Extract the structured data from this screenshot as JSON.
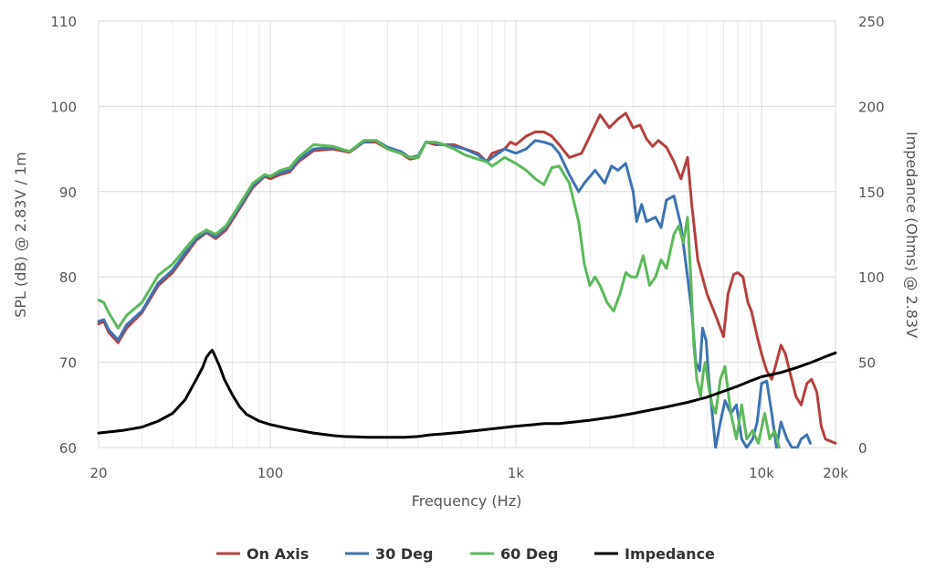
{
  "chart_data": {
    "type": "line",
    "xlabel": "Frequency (Hz)",
    "ylabel_left": "SPL (dB) @ 2.83V / 1m",
    "ylabel_right": "Impedance (Ohms) @ 2.83V",
    "x_scale": "log",
    "xlim": [
      20,
      20000
    ],
    "ylim_left": [
      60,
      110
    ],
    "ylim_right": [
      0,
      250
    ],
    "x_ticks": [
      {
        "value": 20,
        "label": "20"
      },
      {
        "value": 100,
        "label": "100"
      },
      {
        "value": 1000,
        "label": "1k"
      },
      {
        "value": 10000,
        "label": "10k"
      },
      {
        "value": 20000,
        "label": "20k"
      }
    ],
    "y_ticks_left": [
      "60",
      "70",
      "80",
      "90",
      "100",
      "110"
    ],
    "y_ticks_right": [
      "0",
      "50",
      "100",
      "150",
      "200",
      "250"
    ],
    "grid": true,
    "legend_position": "bottom",
    "series": [
      {
        "name": "On Axis",
        "axis": "left",
        "color": "#b5403f",
        "points": [
          [
            20,
            74.5
          ],
          [
            21,
            74.8
          ],
          [
            22,
            73.5
          ],
          [
            24,
            72.3
          ],
          [
            26,
            74
          ],
          [
            30,
            75.8
          ],
          [
            35,
            79
          ],
          [
            40,
            80.5
          ],
          [
            45,
            82.5
          ],
          [
            50,
            84.3
          ],
          [
            55,
            85.2
          ],
          [
            60,
            84.5
          ],
          [
            66,
            85.5
          ],
          [
            75,
            88
          ],
          [
            85,
            90.5
          ],
          [
            95,
            91.8
          ],
          [
            100,
            91.5
          ],
          [
            110,
            92
          ],
          [
            120,
            92.3
          ],
          [
            130,
            93.5
          ],
          [
            150,
            94.8
          ],
          [
            180,
            95
          ],
          [
            210,
            94.6
          ],
          [
            240,
            95.8
          ],
          [
            270,
            95.8
          ],
          [
            300,
            95
          ],
          [
            340,
            94.5
          ],
          [
            370,
            93.8
          ],
          [
            400,
            94
          ],
          [
            430,
            95.8
          ],
          [
            470,
            95.5
          ],
          [
            500,
            95.5
          ],
          [
            560,
            95.5
          ],
          [
            620,
            95
          ],
          [
            700,
            94.5
          ],
          [
            760,
            93.5
          ],
          [
            800,
            94.5
          ],
          [
            900,
            95
          ],
          [
            950,
            95.8
          ],
          [
            1000,
            95.5
          ],
          [
            1100,
            96.5
          ],
          [
            1200,
            97
          ],
          [
            1300,
            97
          ],
          [
            1400,
            96.5
          ],
          [
            1500,
            95.5
          ],
          [
            1650,
            94
          ],
          [
            1850,
            94.5
          ],
          [
            2000,
            96.5
          ],
          [
            2200,
            99
          ],
          [
            2400,
            97.5
          ],
          [
            2600,
            98.5
          ],
          [
            2800,
            99.2
          ],
          [
            3000,
            97.5
          ],
          [
            3200,
            97.8
          ],
          [
            3400,
            96.2
          ],
          [
            3600,
            95.3
          ],
          [
            3800,
            96
          ],
          [
            4100,
            95.2
          ],
          [
            4400,
            93.5
          ],
          [
            4700,
            91.5
          ],
          [
            5000,
            94
          ],
          [
            5200,
            88.5
          ],
          [
            5500,
            82
          ],
          [
            6000,
            78
          ],
          [
            6500,
            75.5
          ],
          [
            7000,
            73
          ],
          [
            7300,
            78
          ],
          [
            7700,
            80.3
          ],
          [
            8000,
            80.5
          ],
          [
            8400,
            80
          ],
          [
            8800,
            77
          ],
          [
            9100,
            76
          ],
          [
            9600,
            73
          ],
          [
            10000,
            71
          ],
          [
            10500,
            69
          ],
          [
            11000,
            68
          ],
          [
            11500,
            70
          ],
          [
            12000,
            72
          ],
          [
            12500,
            71
          ],
          [
            13000,
            69
          ],
          [
            13800,
            66
          ],
          [
            14500,
            65
          ],
          [
            15300,
            67.5
          ],
          [
            16000,
            68
          ],
          [
            16800,
            66.5
          ],
          [
            17500,
            62.5
          ],
          [
            18200,
            61
          ],
          [
            20000,
            60.5
          ]
        ]
      },
      {
        "name": "30 Deg",
        "axis": "left",
        "color": "#3f73b2",
        "points": [
          [
            20,
            74.8
          ],
          [
            21,
            75
          ],
          [
            22,
            73.8
          ],
          [
            24,
            72.6
          ],
          [
            26,
            74.4
          ],
          [
            30,
            76
          ],
          [
            35,
            79.3
          ],
          [
            40,
            80.8
          ],
          [
            45,
            82.8
          ],
          [
            50,
            84.5
          ],
          [
            55,
            85.3
          ],
          [
            60,
            84.7
          ],
          [
            66,
            85.8
          ],
          [
            75,
            88.2
          ],
          [
            85,
            90.7
          ],
          [
            95,
            91.9
          ],
          [
            100,
            91.8
          ],
          [
            110,
            92.2
          ],
          [
            120,
            92.5
          ],
          [
            130,
            93.7
          ],
          [
            150,
            95
          ],
          [
            180,
            95.2
          ],
          [
            210,
            94.7
          ],
          [
            240,
            95.8
          ],
          [
            270,
            96
          ],
          [
            300,
            95.2
          ],
          [
            340,
            94.7
          ],
          [
            370,
            94
          ],
          [
            400,
            94.2
          ],
          [
            430,
            95.8
          ],
          [
            470,
            95.7
          ],
          [
            500,
            95.5
          ],
          [
            560,
            95.3
          ],
          [
            620,
            95
          ],
          [
            700,
            94.3
          ],
          [
            760,
            93.5
          ],
          [
            800,
            94
          ],
          [
            900,
            95
          ],
          [
            1000,
            94.5
          ],
          [
            1100,
            95
          ],
          [
            1200,
            96
          ],
          [
            1300,
            95.8
          ],
          [
            1400,
            95.5
          ],
          [
            1500,
            94.5
          ],
          [
            1650,
            92
          ],
          [
            1800,
            90
          ],
          [
            1900,
            91
          ],
          [
            2100,
            92.5
          ],
          [
            2300,
            91
          ],
          [
            2450,
            93
          ],
          [
            2600,
            92.5
          ],
          [
            2800,
            93.3
          ],
          [
            3000,
            90
          ],
          [
            3100,
            86.5
          ],
          [
            3250,
            88.5
          ],
          [
            3400,
            86.5
          ],
          [
            3700,
            87
          ],
          [
            3900,
            85.8
          ],
          [
            4100,
            89
          ],
          [
            4400,
            89.5
          ],
          [
            4700,
            86
          ],
          [
            5000,
            80
          ],
          [
            5200,
            76
          ],
          [
            5400,
            70
          ],
          [
            5600,
            69
          ],
          [
            5750,
            74
          ],
          [
            5950,
            72.5
          ],
          [
            6100,
            68
          ],
          [
            6300,
            64
          ],
          [
            6500,
            60
          ],
          [
            6800,
            63
          ],
          [
            7100,
            65.5
          ],
          [
            7500,
            64
          ],
          [
            7900,
            65
          ],
          [
            8300,
            61
          ],
          [
            8700,
            60
          ],
          [
            9200,
            61
          ],
          [
            9600,
            63
          ],
          [
            10000,
            67.5
          ],
          [
            10500,
            67.8
          ],
          [
            11000,
            64
          ],
          [
            11500,
            60
          ],
          [
            12000,
            63
          ],
          [
            12700,
            61
          ],
          [
            13300,
            60
          ],
          [
            14000,
            60
          ],
          [
            14500,
            61
          ],
          [
            15300,
            61.5
          ],
          [
            15800,
            60.5
          ]
        ]
      },
      {
        "name": "60 Deg",
        "axis": "left",
        "color": "#5cb85c",
        "points": [
          [
            20,
            77.3
          ],
          [
            21,
            77
          ],
          [
            22,
            75.8
          ],
          [
            24,
            74
          ],
          [
            26,
            75.5
          ],
          [
            30,
            77
          ],
          [
            35,
            80.2
          ],
          [
            40,
            81.5
          ],
          [
            45,
            83.3
          ],
          [
            50,
            84.8
          ],
          [
            55,
            85.5
          ],
          [
            60,
            85
          ],
          [
            66,
            86
          ],
          [
            75,
            88.5
          ],
          [
            85,
            91
          ],
          [
            95,
            92
          ],
          [
            100,
            91.8
          ],
          [
            110,
            92.5
          ],
          [
            120,
            92.8
          ],
          [
            130,
            94
          ],
          [
            150,
            95.5
          ],
          [
            180,
            95.3
          ],
          [
            210,
            94.7
          ],
          [
            240,
            96
          ],
          [
            270,
            96
          ],
          [
            300,
            95
          ],
          [
            340,
            94.5
          ],
          [
            370,
            94
          ],
          [
            400,
            94
          ],
          [
            430,
            95.8
          ],
          [
            470,
            95.8
          ],
          [
            500,
            95.6
          ],
          [
            560,
            95
          ],
          [
            620,
            94.3
          ],
          [
            700,
            93.8
          ],
          [
            760,
            93.5
          ],
          [
            800,
            93
          ],
          [
            900,
            94
          ],
          [
            1000,
            93.3
          ],
          [
            1100,
            92.5
          ],
          [
            1200,
            91.5
          ],
          [
            1300,
            90.8
          ],
          [
            1400,
            92.8
          ],
          [
            1500,
            93
          ],
          [
            1650,
            91
          ],
          [
            1800,
            86.5
          ],
          [
            1900,
            81.5
          ],
          [
            2000,
            79
          ],
          [
            2100,
            80
          ],
          [
            2200,
            79
          ],
          [
            2350,
            77
          ],
          [
            2500,
            76
          ],
          [
            2650,
            78
          ],
          [
            2800,
            80.5
          ],
          [
            2950,
            80
          ],
          [
            3100,
            80
          ],
          [
            3300,
            82.5
          ],
          [
            3500,
            79
          ],
          [
            3700,
            80
          ],
          [
            3900,
            82
          ],
          [
            4100,
            81
          ],
          [
            4400,
            85
          ],
          [
            4600,
            86
          ],
          [
            4800,
            84
          ],
          [
            5000,
            87
          ],
          [
            5150,
            80
          ],
          [
            5300,
            72
          ],
          [
            5450,
            68
          ],
          [
            5650,
            66
          ],
          [
            5800,
            69
          ],
          [
            5900,
            70
          ],
          [
            6100,
            67
          ],
          [
            6300,
            65
          ],
          [
            6500,
            64
          ],
          [
            6800,
            68
          ],
          [
            7100,
            69.5
          ],
          [
            7500,
            64
          ],
          [
            7900,
            61
          ],
          [
            8300,
            65
          ],
          [
            8700,
            61
          ],
          [
            9200,
            62
          ],
          [
            9700,
            60.5
          ],
          [
            10300,
            64
          ],
          [
            10800,
            61
          ],
          [
            11300,
            62
          ],
          [
            11800,
            60
          ]
        ]
      },
      {
        "name": "Impedance",
        "axis": "right",
        "color": "#000000",
        "points": [
          [
            20,
            8.5
          ],
          [
            25,
            10
          ],
          [
            30,
            12
          ],
          [
            35,
            15.5
          ],
          [
            40,
            20
          ],
          [
            45,
            28
          ],
          [
            50,
            40
          ],
          [
            53,
            47
          ],
          [
            55,
            53
          ],
          [
            57,
            56
          ],
          [
            58,
            57
          ],
          [
            59,
            55
          ],
          [
            62,
            48
          ],
          [
            65,
            40
          ],
          [
            70,
            31
          ],
          [
            75,
            24
          ],
          [
            80,
            19.5
          ],
          [
            90,
            15.5
          ],
          [
            100,
            13.5
          ],
          [
            120,
            11
          ],
          [
            150,
            8.5
          ],
          [
            180,
            7
          ],
          [
            200,
            6.5
          ],
          [
            250,
            6
          ],
          [
            300,
            6
          ],
          [
            350,
            6
          ],
          [
            400,
            6.5
          ],
          [
            450,
            7.5
          ],
          [
            500,
            8
          ],
          [
            600,
            9
          ],
          [
            700,
            10
          ],
          [
            800,
            11
          ],
          [
            1000,
            12.5
          ],
          [
            1200,
            13.5
          ],
          [
            1300,
            14
          ],
          [
            1500,
            14
          ],
          [
            2000,
            16
          ],
          [
            2500,
            18
          ],
          [
            3000,
            20
          ],
          [
            4000,
            23.5
          ],
          [
            5000,
            26.5
          ],
          [
            6000,
            29.5
          ],
          [
            7000,
            33
          ],
          [
            8000,
            36
          ],
          [
            9000,
            39
          ],
          [
            10000,
            41.5
          ],
          [
            12000,
            44
          ],
          [
            14000,
            47
          ],
          [
            16000,
            50
          ],
          [
            18000,
            53
          ],
          [
            20000,
            55.5
          ]
        ]
      }
    ]
  }
}
